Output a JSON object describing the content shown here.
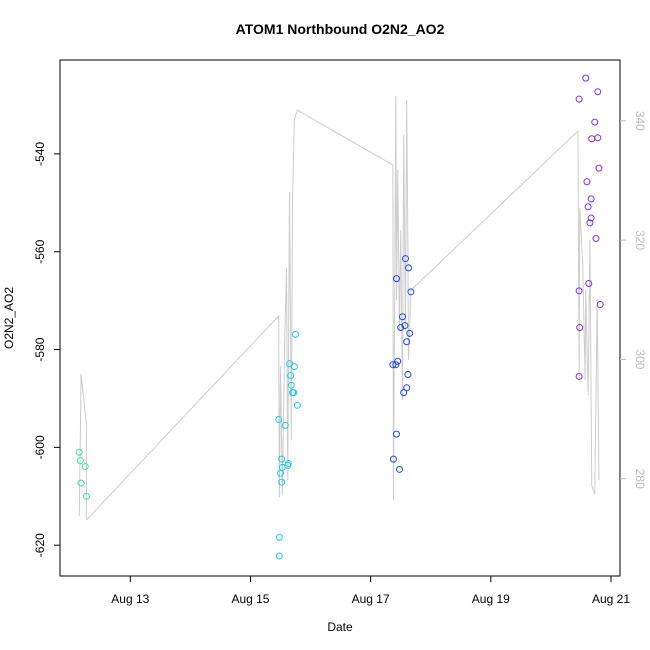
{
  "chart_data": {
    "type": "scatter",
    "title": "ATOM1 Northbound O2N2_AO2",
    "x_label": "Date",
    "y_label": "O2N2_AO2",
    "xlim": [
      11.83,
      21.15
    ],
    "xticks": [
      {
        "value": 13,
        "label": "Aug 13"
      },
      {
        "value": 15,
        "label": "Aug 15"
      },
      {
        "value": 17,
        "label": "Aug 17"
      },
      {
        "value": 19,
        "label": "Aug 19"
      },
      {
        "value": 21,
        "label": "Aug 21"
      }
    ],
    "ylim": [
      -626.3,
      -520.8
    ],
    "yticks": [
      -620,
      -600,
      -580,
      -560,
      -540
    ],
    "y2lim": [
      263.7,
      350.2
    ],
    "y2ticks": [
      280,
      300,
      320,
      340
    ],
    "y2_color": "#bbbbbb",
    "series": [
      {
        "mode": "line",
        "axis": "y2",
        "color": "#cccccc",
        "x": [
          12.15,
          12.17,
          12.18,
          12.27,
          12.27,
          12.28,
          15.47,
          15.48,
          15.5,
          15.53,
          15.57,
          15.6,
          15.62,
          15.65,
          15.68,
          15.7,
          15.73,
          15.78,
          17.37,
          17.38,
          17.42,
          17.43,
          17.45,
          17.48,
          17.5,
          17.53,
          17.55,
          17.58,
          17.6,
          17.62,
          17.63,
          17.67,
          20.45,
          20.47,
          20.48,
          20.53,
          20.57,
          20.58,
          20.62,
          20.65,
          20.68,
          20.73,
          20.77,
          20.8
        ],
        "values": [
          273.7,
          288.2,
          297.6,
          289.3,
          273.2,
          273.2,
          307.3,
          276.9,
          298.9,
          277.2,
          303.3,
          315.3,
          279.8,
          328.1,
          286.5,
          326.7,
          340.2,
          341.8,
          332.6,
          276.4,
          344.2,
          310.0,
          331.8,
          304.9,
          321.7,
          293.2,
          337.7,
          304.9,
          343.5,
          318.4,
          299.9,
          311.6,
          338.3,
          296.5,
          325.4,
          315.8,
          296.5,
          311.6,
          294.0,
          320.0,
          278.8,
          277.4,
          310.0,
          279.8
        ]
      },
      {
        "mode": "points",
        "color": "#3fe0a0",
        "x": [
          12.15,
          12.17,
          12.18,
          12.25,
          12.27
        ],
        "values": [
          -601.0,
          -602.7,
          -607.3,
          -603.9,
          -610.0
        ]
      },
      {
        "mode": "points",
        "color": "#22c8ec",
        "x": [
          15.47,
          15.48,
          15.48,
          15.5,
          15.52,
          15.53,
          15.52,
          15.58,
          15.62,
          15.63,
          15.65,
          15.67,
          15.68,
          15.7,
          15.72,
          15.73,
          15.75,
          15.78
        ],
        "values": [
          -594.3,
          -618.4,
          -622.2,
          -605.3,
          -607.1,
          -604.1,
          -602.4,
          -595.5,
          -603.7,
          -603.3,
          -582.9,
          -585.3,
          -587.3,
          -588.8,
          -588.8,
          -583.5,
          -576.9,
          -591.4
        ]
      },
      {
        "mode": "points",
        "color": "#2448e4",
        "x": [
          17.37,
          17.42,
          17.45,
          17.43,
          17.43,
          17.38,
          17.48,
          17.5,
          17.53,
          17.55,
          17.57,
          17.58,
          17.6,
          17.62,
          17.63,
          17.65,
          17.67,
          17.6
        ],
        "values": [
          -583.1,
          -583.1,
          -582.4,
          -565.5,
          -597.3,
          -602.4,
          -604.5,
          -575.5,
          -573.3,
          -588.8,
          -575.1,
          -561.4,
          -578.4,
          -585.1,
          -563.3,
          -576.7,
          -568.2,
          -587.8
        ]
      },
      {
        "mode": "points",
        "color": "#7c34f0",
        "x": [
          20.47,
          20.47,
          20.47,
          20.48,
          20.58,
          20.6,
          20.62,
          20.63,
          20.65,
          20.67,
          20.67,
          20.68,
          20.73,
          20.75,
          20.78,
          20.78,
          20.8,
          20.82
        ],
        "values": [
          -528.8,
          -585.5,
          -568.0,
          -575.5,
          -524.5,
          -545.7,
          -550.8,
          -566.5,
          -554.1,
          -549.2,
          -553.1,
          -536.9,
          -533.5,
          -557.3,
          -527.3,
          -536.7,
          -542.9,
          -570.8
        ]
      }
    ]
  }
}
